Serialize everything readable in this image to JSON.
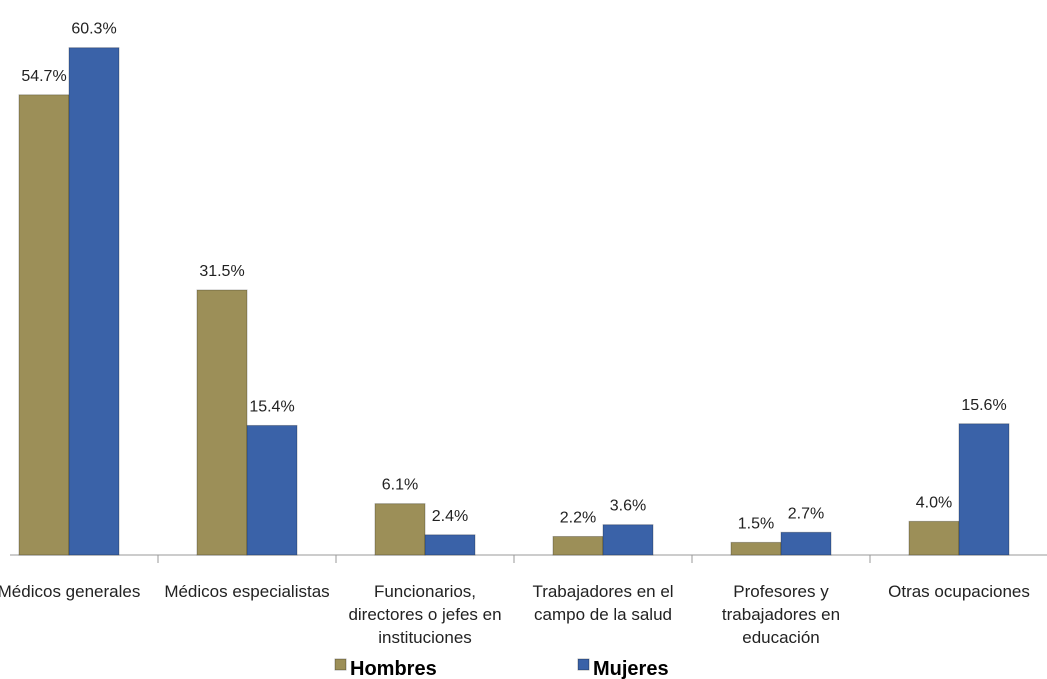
{
  "chart_data": {
    "type": "bar",
    "categories": [
      "Médicos generales",
      "Médicos especialistas",
      "Funcionarios, directores o jefes en instituciones",
      "Trabajadores en el campo de la salud",
      "Profesores y trabajadores en educación",
      "Otras ocupaciones"
    ],
    "series": [
      {
        "name": "Hombres",
        "color": "#9c8f58",
        "values": [
          54.7,
          31.5,
          6.1,
          2.2,
          1.5,
          4.0
        ],
        "value_labels": [
          "54.7%",
          "31.5%",
          "6.1%",
          "2.2%",
          "1.5%",
          "4.0%"
        ]
      },
      {
        "name": "Mujeres",
        "color": "#3a62a8",
        "values": [
          60.3,
          15.4,
          2.4,
          3.6,
          2.7,
          15.6
        ],
        "value_labels": [
          "60.3%",
          "15.4%",
          "2.4%",
          "3.6%",
          "2.7%",
          "15.6%"
        ]
      }
    ],
    "ylim": [
      0,
      63
    ],
    "legend": "bottom"
  }
}
